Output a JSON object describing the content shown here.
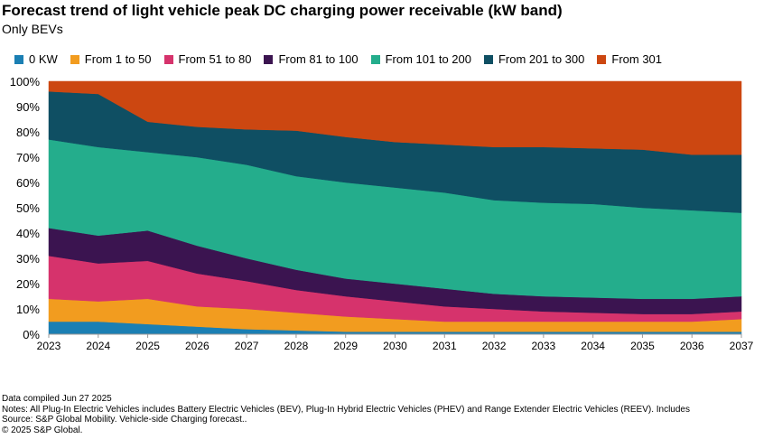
{
  "title": "Forecast trend of light vehicle peak DC charging power receivable (kW band)",
  "subtitle": "Only BEVs",
  "notes": [
    "Data compiled Jun 27 2025",
    "Notes: All Plug-In Electric Vehicles includes Battery Electric Vehicles (BEV), Plug-In Hybrid Electric Vehicles (PHEV) and Range Extender Electric Vehicles (REEV). Includes",
    "Source: S&P Global Mobility. Vehicle-side Charging forecast..",
    "© 2025 S&P Global."
  ],
  "chart_data": {
    "type": "area",
    "stacked": true,
    "x": [
      "2023",
      "2024",
      "2025",
      "2026",
      "2027",
      "2028",
      "2029",
      "2030",
      "2031",
      "2032",
      "2033",
      "2034",
      "2035",
      "2036",
      "2037"
    ],
    "ylim": [
      0,
      100
    ],
    "yticks": [
      "0%",
      "10%",
      "20%",
      "30%",
      "40%",
      "50%",
      "60%",
      "70%",
      "80%",
      "90%",
      "100%"
    ],
    "legend_position": "top",
    "grid": false,
    "series": [
      {
        "name": "0 KW",
        "color": "#1b7fb3",
        "values": [
          5,
          5,
          4,
          3,
          2,
          1.5,
          1,
          1,
          1,
          1,
          1,
          1,
          1,
          1,
          1
        ]
      },
      {
        "name": "From 1 to 50",
        "color": "#f29c1f",
        "values": [
          9,
          8,
          10,
          8,
          8,
          7,
          6,
          5,
          4,
          4,
          4,
          4,
          4,
          4,
          5
        ]
      },
      {
        "name": "From 51 to 80",
        "color": "#d6336c",
        "values": [
          17,
          15,
          15,
          13,
          11,
          9,
          8,
          7,
          6,
          5,
          4,
          3.5,
          3,
          3,
          3
        ]
      },
      {
        "name": "From 81 to 100",
        "color": "#3b1450",
        "values": [
          11,
          11,
          12,
          11,
          9,
          8,
          7,
          7,
          7,
          6,
          6,
          6,
          6,
          6,
          6
        ]
      },
      {
        "name": "From 101 to 200",
        "color": "#24ad8c",
        "values": [
          35,
          35,
          31,
          35,
          37,
          37,
          38,
          38,
          38,
          37,
          37,
          37,
          36,
          35,
          33
        ]
      },
      {
        "name": "From 201 to 300",
        "color": "#0f4f63",
        "values": [
          19,
          21,
          12,
          12,
          14,
          18,
          18,
          18,
          19,
          21,
          22,
          22,
          23,
          22,
          23
        ]
      },
      {
        "name": "From 301",
        "color": "#cc4711",
        "values": [
          4,
          5,
          16,
          18,
          19,
          19.5,
          22,
          24,
          25,
          26,
          26,
          26.5,
          27,
          29,
          29
        ]
      }
    ]
  }
}
